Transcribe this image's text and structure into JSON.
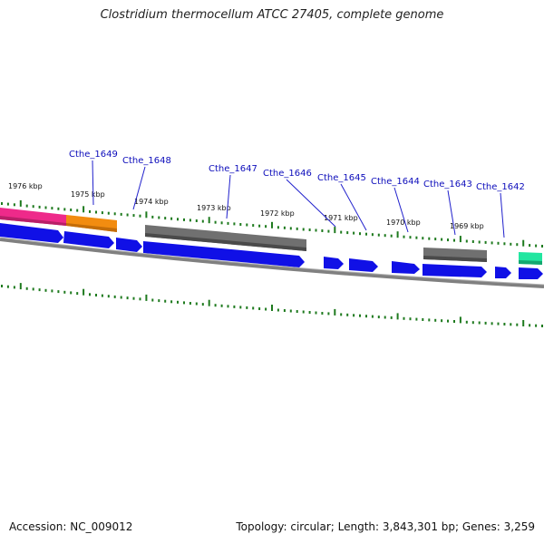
{
  "title": "Clostridium thermocellum ATCC 27405, complete genome",
  "footer": {
    "accession": "Accession: NC_009012",
    "summary": "Topology: circular; Length: 3,843,301 bp; Genes: 3,259"
  },
  "colors": {
    "cds_blue": "#1010e6",
    "backbone": "#808080",
    "tick_green": "#1e7a1e",
    "pink": "#ee2a8a",
    "orange": "#f28c10",
    "gray_feature": "#707070",
    "teal": "#22e6a0",
    "label_blue": "#0d0dbb"
  },
  "kbp_ticks": [
    {
      "label": "1976 kbp"
    },
    {
      "label": "1975 kbp"
    },
    {
      "label": "1974 kbp"
    },
    {
      "label": "1973 kbp"
    },
    {
      "label": "1972 kbp"
    },
    {
      "label": "1971 kbp"
    },
    {
      "label": "1970 kbp"
    },
    {
      "label": "1969 kbp"
    }
  ],
  "gene_labels": [
    {
      "name": "Cthe_1649"
    },
    {
      "name": "Cthe_1648"
    },
    {
      "name": "Cthe_1647"
    },
    {
      "name": "Cthe_1646"
    },
    {
      "name": "Cthe_1645"
    },
    {
      "name": "Cthe_1644"
    },
    {
      "name": "Cthe_1643"
    },
    {
      "name": "Cthe_1642"
    }
  ]
}
